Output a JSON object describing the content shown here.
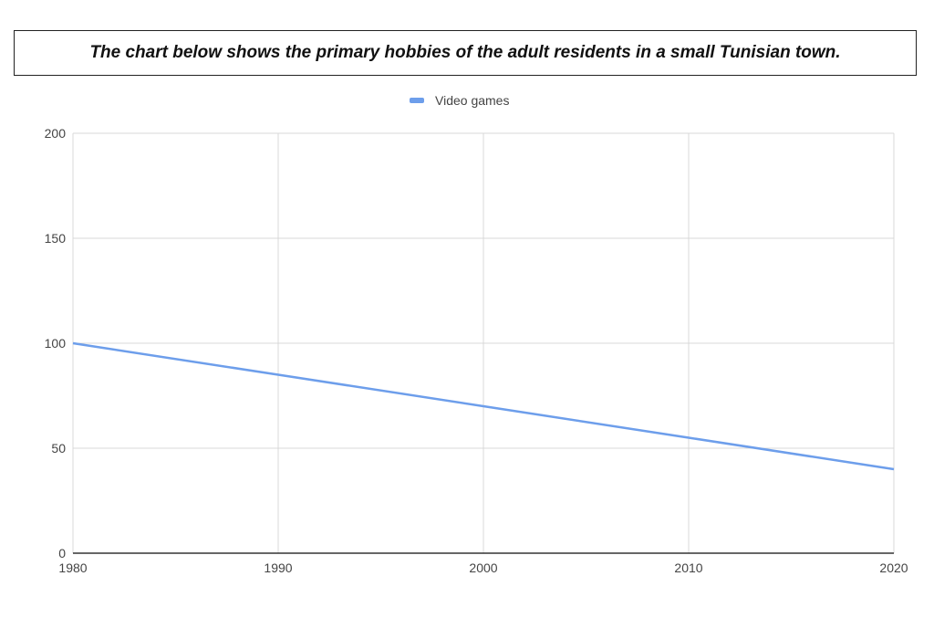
{
  "chart_data": {
    "type": "line",
    "title": "The chart below shows the primary hobbies of the adult residents in a small Tunisian town.",
    "xlabel": "",
    "ylabel": "",
    "x": [
      1980,
      1990,
      2000,
      2010,
      2020
    ],
    "series": [
      {
        "name": "Video games",
        "values": [
          100,
          85,
          70,
          55,
          40
        ],
        "color": "#6d9eeb"
      }
    ],
    "xlim": [
      1980,
      2020
    ],
    "ylim": [
      0,
      200
    ],
    "xticks": [
      "1980",
      "1990",
      "2000",
      "2010",
      "2020"
    ],
    "yticks": [
      "0",
      "50",
      "100",
      "150",
      "200"
    ],
    "grid": true,
    "legend": "top-center"
  }
}
